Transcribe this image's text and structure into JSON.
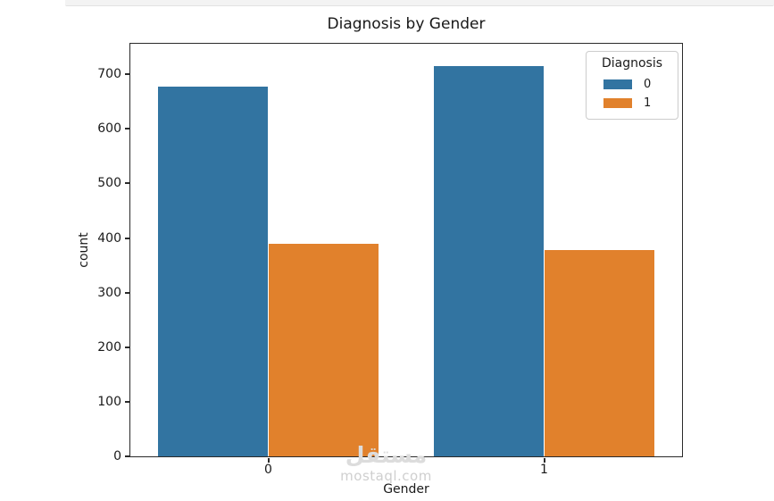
{
  "watermark": {
    "logo": "مستقل",
    "site": "mostaql.com"
  },
  "chart_data": {
    "type": "bar",
    "title": "Diagnosis by Gender",
    "xlabel": "Gender",
    "ylabel": "count",
    "categories": [
      "0",
      "1"
    ],
    "series": [
      {
        "name": "0",
        "color": "#3274a1",
        "values": [
          678,
          715
        ]
      },
      {
        "name": "1",
        "color": "#e1812c",
        "values": [
          389,
          378
        ]
      }
    ],
    "legend": {
      "title": "Diagnosis",
      "position": "upper right"
    },
    "ylim": [
      0,
      756
    ],
    "yticks": [
      0,
      100,
      200,
      300,
      400,
      500,
      600,
      700
    ],
    "grid": false,
    "bar_width_fraction": 0.2,
    "group_centers_fraction": [
      0.25,
      0.75
    ],
    "axis_color": "#2a2a2a"
  }
}
